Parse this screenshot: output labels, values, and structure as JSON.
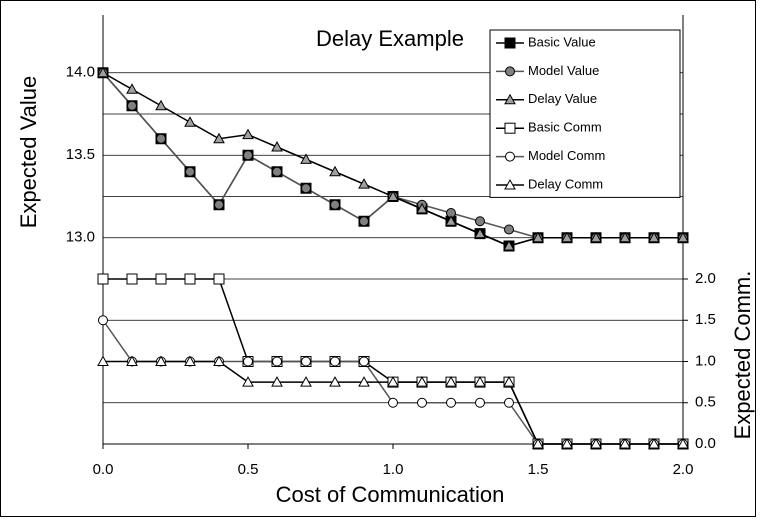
{
  "chart_data": {
    "type": "line",
    "title": "Delay Example",
    "x_label": "Cost of Communication",
    "y_label": "Expected Value",
    "y2_label": "Expected Comm.",
    "x": [
      0,
      0.1,
      0.2,
      0.3,
      0.4,
      0.5,
      0.6,
      0.7,
      0.8,
      0.9,
      1.0,
      1.1,
      1.2,
      1.3,
      1.4,
      1.5,
      1.6,
      1.7,
      1.8,
      1.9,
      2.0
    ],
    "xlim": [
      0,
      2
    ],
    "xticks": [
      {
        "value": 0,
        "label": "0.0"
      },
      {
        "value": 0.5,
        "label": "0.5"
      },
      {
        "value": 1,
        "label": "1.0"
      },
      {
        "value": 1.5,
        "label": "1.5"
      },
      {
        "value": 2,
        "label": "2.0"
      }
    ],
    "ylim": [
      11.75,
      14.35
    ],
    "yticks": [
      {
        "value": 14,
        "label": "14.0"
      },
      {
        "value": 13.5,
        "label": "13.5"
      },
      {
        "value": 13,
        "label": "13.0"
      }
    ],
    "yminor": [
      13.75,
      13.25
    ],
    "y2lim": [
      0,
      5.2
    ],
    "y2ticks": [
      {
        "value": 0,
        "label": "0.0"
      },
      {
        "value": 0.5,
        "label": "0.5"
      },
      {
        "value": 1,
        "label": "1.0"
      },
      {
        "value": 1.5,
        "label": "1.5"
      },
      {
        "value": 2,
        "label": "2.0"
      }
    ],
    "grid": true,
    "legend": "upper right",
    "series": [
      {
        "name": "Basic Value",
        "color": "#000000",
        "marker": "square",
        "marker_fill": "#000000",
        "values": [
          14.0,
          13.8,
          13.6,
          13.4,
          13.2,
          13.5,
          13.4,
          13.3,
          13.2,
          13.1,
          13.25,
          13.175,
          13.1,
          13.025,
          12.95,
          13.0,
          13.0,
          13.0,
          13.0,
          13.0,
          13.0
        ]
      },
      {
        "name": "Model Value",
        "color": "#555555",
        "marker": "circle",
        "marker_fill": "#808080",
        "values": [
          14.0,
          13.8,
          13.6,
          13.4,
          13.2,
          13.5,
          13.4,
          13.3,
          13.2,
          13.1,
          13.25,
          13.2,
          13.15,
          13.1,
          13.05,
          13.0,
          13.0,
          13.0,
          13.0,
          13.0,
          13.0
        ]
      },
      {
        "name": "Delay Value",
        "color": "#000000",
        "marker": "triangle",
        "marker_fill": "#a0a0a0",
        "values": [
          14.0,
          13.9,
          13.8,
          13.7,
          13.6,
          13.625,
          13.55,
          13.475,
          13.4,
          13.325,
          13.25,
          13.175,
          13.1,
          13.025,
          12.95,
          13.0,
          13.0,
          13.0,
          13.0,
          13.0,
          13.0
        ]
      },
      {
        "name": "Basic Comm",
        "color": "#000000",
        "marker": "square",
        "marker_fill": "#ffffff",
        "axis": "y2",
        "values": [
          2,
          2,
          2,
          2,
          2,
          1,
          1,
          1,
          1,
          1,
          0.75,
          0.75,
          0.75,
          0.75,
          0.75,
          0,
          0,
          0,
          0,
          0,
          0
        ]
      },
      {
        "name": "Model Comm",
        "color": "#555555",
        "marker": "circle",
        "marker_fill": "#ffffff",
        "axis": "y2",
        "values": [
          1.5,
          1,
          1,
          1,
          1,
          1,
          1,
          1,
          1,
          1,
          0.5,
          0.5,
          0.5,
          0.5,
          0.5,
          0,
          0,
          0,
          0,
          0,
          0
        ]
      },
      {
        "name": "Delay Comm",
        "color": "#000000",
        "marker": "triangle",
        "marker_fill": "#ffffff",
        "axis": "y2",
        "values": [
          1,
          1,
          1,
          1,
          1,
          0.75,
          0.75,
          0.75,
          0.75,
          0.75,
          0.75,
          0.75,
          0.75,
          0.75,
          0.75,
          0,
          0,
          0,
          0,
          0,
          0
        ]
      }
    ]
  }
}
